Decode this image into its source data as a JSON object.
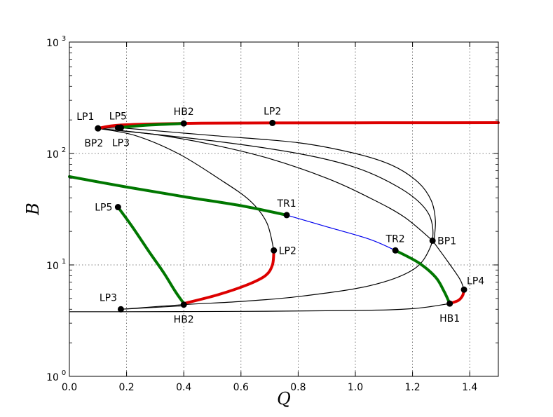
{
  "chart_data": {
    "type": "line",
    "title": "",
    "xlabel": "Q",
    "ylabel": "B",
    "xlim": [
      0.0,
      1.5
    ],
    "ylim": [
      1,
      1000
    ],
    "yscale": "log",
    "grid": true,
    "x_ticks": [
      "0.0",
      "0.2",
      "0.4",
      "0.6",
      "0.8",
      "1.0",
      "1.2",
      "1.4"
    ],
    "y_ticks": [
      {
        "value": 1,
        "base": "10",
        "exp": "0"
      },
      {
        "value": 10,
        "base": "10",
        "exp": "1"
      },
      {
        "value": 100,
        "base": "10",
        "exp": "2"
      },
      {
        "value": 1000,
        "base": "10",
        "exp": "3"
      }
    ],
    "colors": {
      "stable": "#dd0000",
      "periodic": "#007700",
      "torus": "#0000ee",
      "unstable": "#000000"
    },
    "series": [
      {
        "color": "#dd0000",
        "width": 4,
        "points": [
          [
            0.1,
            168
          ],
          [
            0.18,
            180
          ],
          [
            0.4,
            186
          ],
          [
            0.71,
            188
          ],
          [
            1.5,
            189
          ]
        ]
      },
      {
        "color": "#007700",
        "width": 4,
        "points": [
          [
            0.17,
            170
          ],
          [
            0.25,
            178
          ],
          [
            0.4,
            186
          ]
        ]
      },
      {
        "color": "#000000",
        "width": 1.2,
        "points": [
          [
            0.1,
            168
          ],
          [
            0.17,
            170
          ]
        ]
      },
      {
        "color": "#000000",
        "width": 1.2,
        "points": [
          [
            0.1,
            168
          ],
          [
            0.23,
            145
          ],
          [
            0.38,
            100
          ],
          [
            0.52,
            60
          ],
          [
            0.63,
            38
          ],
          [
            0.69,
            24
          ],
          [
            0.715,
            13.5
          ]
        ]
      },
      {
        "color": "#000000",
        "width": 1.2,
        "points": [
          [
            0.1,
            168
          ],
          [
            0.5,
            130
          ],
          [
            0.8,
            100
          ],
          [
            1.0,
            75
          ],
          [
            1.15,
            50
          ],
          [
            1.24,
            33
          ],
          [
            1.27,
            22
          ],
          [
            1.26,
            14
          ],
          [
            1.2,
            9
          ],
          [
            1.05,
            6.5
          ],
          [
            0.8,
            5.2
          ],
          [
            0.6,
            4.7
          ],
          [
            0.4,
            4.4
          ],
          [
            0.18,
            4.0
          ]
        ]
      },
      {
        "color": "#000000",
        "width": 1.2,
        "points": [
          [
            0.1,
            168
          ],
          [
            0.3,
            148
          ],
          [
            0.5,
            120
          ],
          [
            0.7,
            90
          ],
          [
            0.9,
            60
          ],
          [
            1.05,
            40
          ],
          [
            1.17,
            27
          ],
          [
            1.27,
            16.5
          ]
        ]
      },
      {
        "color": "#000000",
        "width": 1.2,
        "points": [
          [
            0.18,
            170
          ],
          [
            0.5,
            145
          ],
          [
            0.8,
            125
          ],
          [
            1.0,
            100
          ],
          [
            1.13,
            78
          ],
          [
            1.22,
            55
          ],
          [
            1.265,
            38
          ],
          [
            1.28,
            25
          ],
          [
            1.275,
            16.5
          ]
        ]
      },
      {
        "color": "#000000",
        "width": 1.2,
        "points": [
          [
            1.27,
            16.5
          ],
          [
            1.32,
            11
          ],
          [
            1.365,
            7.5
          ],
          [
            1.38,
            6.0
          ]
        ]
      },
      {
        "color": "#000000",
        "width": 1.2,
        "points": [
          [
            0.0,
            3.8
          ],
          [
            0.18,
            3.8
          ],
          [
            0.6,
            3.83
          ],
          [
            1.0,
            3.9
          ],
          [
            1.2,
            4.05
          ],
          [
            1.33,
            4.5
          ]
        ]
      },
      {
        "color": "#000000",
        "width": 1.2,
        "points": [
          [
            0.18,
            4.0
          ],
          [
            0.4,
            4.3
          ]
        ]
      },
      {
        "color": "#dd0000",
        "width": 4,
        "points": [
          [
            0.4,
            4.5
          ],
          [
            0.52,
            5.4
          ],
          [
            0.62,
            6.6
          ],
          [
            0.685,
            8.0
          ],
          [
            0.71,
            10
          ],
          [
            0.715,
            13.5
          ]
        ]
      },
      {
        "color": "#dd0000",
        "width": 4,
        "points": [
          [
            1.33,
            4.5
          ],
          [
            1.36,
            4.8
          ],
          [
            1.375,
            5.3
          ],
          [
            1.38,
            6.0
          ]
        ]
      },
      {
        "color": "#007700",
        "width": 4,
        "points": [
          [
            0.17,
            33
          ],
          [
            0.22,
            22
          ],
          [
            0.28,
            13
          ],
          [
            0.33,
            8.5
          ],
          [
            0.37,
            5.8
          ],
          [
            0.4,
            4.5
          ]
        ]
      },
      {
        "color": "#007700",
        "width": 4,
        "points": [
          [
            0.0,
            62
          ],
          [
            0.2,
            50
          ],
          [
            0.4,
            41
          ],
          [
            0.6,
            34
          ],
          [
            0.76,
            28
          ]
        ]
      },
      {
        "color": "#0000ee",
        "width": 1.2,
        "points": [
          [
            0.76,
            28
          ],
          [
            0.9,
            22
          ],
          [
            1.05,
            17
          ],
          [
            1.14,
            13.5
          ]
        ]
      },
      {
        "color": "#007700",
        "width": 4,
        "points": [
          [
            1.14,
            13.5
          ],
          [
            1.22,
            10.5
          ],
          [
            1.28,
            7.8
          ],
          [
            1.31,
            5.8
          ],
          [
            1.33,
            4.5
          ]
        ]
      }
    ],
    "annotations": [
      {
        "label": "LP1",
        "x": 0.1,
        "y": 168,
        "anchor": "above-left"
      },
      {
        "label": "LP5",
        "x": 0.17,
        "y": 170,
        "anchor": "above"
      },
      {
        "label": "BP2",
        "x": 0.1,
        "y": 168,
        "anchor": "below-left"
      },
      {
        "label": "LP3",
        "x": 0.18,
        "y": 170,
        "anchor": "below"
      },
      {
        "label": "HB2",
        "x": 0.4,
        "y": 186,
        "anchor": "above"
      },
      {
        "label": "LP2",
        "x": 0.71,
        "y": 188,
        "anchor": "above"
      },
      {
        "label": "TR1",
        "x": 0.76,
        "y": 28,
        "anchor": "above"
      },
      {
        "label": "LP5",
        "x": 0.17,
        "y": 33,
        "anchor": "left"
      },
      {
        "label": "LP2",
        "x": 0.715,
        "y": 13.5,
        "anchor": "right"
      },
      {
        "label": "TR2",
        "x": 1.14,
        "y": 13.5,
        "anchor": "above"
      },
      {
        "label": "BP1",
        "x": 1.27,
        "y": 16.5,
        "anchor": "right"
      },
      {
        "label": "LP4",
        "x": 1.38,
        "y": 6.0,
        "anchor": "above-right"
      },
      {
        "label": "HB1",
        "x": 1.33,
        "y": 4.5,
        "anchor": "below"
      },
      {
        "label": "LP3",
        "x": 0.18,
        "y": 4.0,
        "anchor": "above-left"
      },
      {
        "label": "HB2",
        "x": 0.4,
        "y": 4.4,
        "anchor": "below"
      }
    ],
    "markers_only": [
      {
        "x": 0.18,
        "y": 171
      }
    ]
  }
}
